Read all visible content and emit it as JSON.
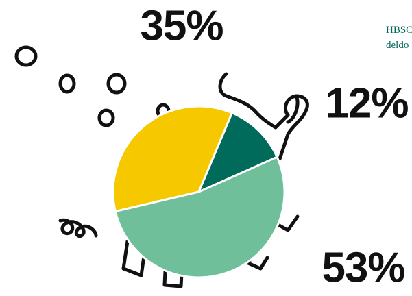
{
  "chart_data": {
    "type": "pie",
    "values": [
      35,
      12,
      53
    ],
    "value_labels": [
      "35%",
      "12%",
      "53%"
    ],
    "colors": [
      "#f5c800",
      "#006b5a",
      "#6fc09a"
    ],
    "annotations": [
      "HBSC",
      "deldo"
    ]
  }
}
